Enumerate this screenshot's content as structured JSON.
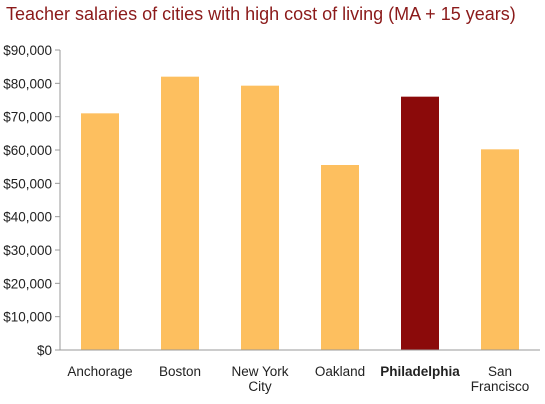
{
  "chart_data": {
    "type": "bar",
    "title": "Teacher salaries of cities with high cost of living (MA + 15 years)",
    "categories": [
      "Anchorage",
      "Boston",
      "New York City",
      "Oakland",
      "Philadelphia",
      "San Francisco"
    ],
    "category_lines": [
      [
        "Anchorage"
      ],
      [
        "Boston"
      ],
      [
        "New York",
        "City"
      ],
      [
        "Oakland"
      ],
      [
        "Philadelphia"
      ],
      [
        "San",
        "Francisco"
      ]
    ],
    "values": [
      71000,
      82000,
      79300,
      55500,
      76000,
      60200
    ],
    "highlight_category": "Philadelphia",
    "ylim": [
      0,
      90000
    ],
    "yticks": [
      0,
      10000,
      20000,
      30000,
      40000,
      50000,
      60000,
      70000,
      80000,
      90000
    ],
    "ytick_labels": [
      "$0",
      "$10,000",
      "$20,000",
      "$30,000",
      "$40,000",
      "$50,000",
      "$60,000",
      "$70,000",
      "$80,000",
      "$90,000"
    ],
    "xlabel": "",
    "ylabel": "",
    "grid": false,
    "legend": "none",
    "colors": {
      "bar": "#fdbf5f",
      "highlight": "#8b0a0a",
      "title": "#8b1a1a",
      "axis": "#999999",
      "text": "#222222"
    }
  }
}
